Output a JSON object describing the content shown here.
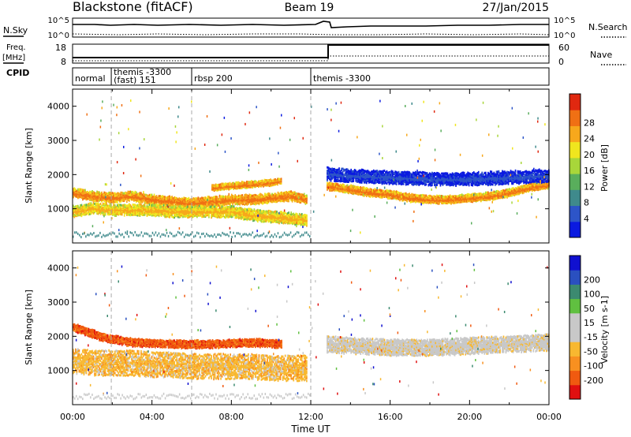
{
  "header": {
    "station": "Blackstone (fitACF)",
    "beam": "Beam 19",
    "date": "27/Jan/2015"
  },
  "left_labels": {
    "nsky": "N.Sky",
    "freq_l1": "Freq.",
    "freq_l2": "[MHz]",
    "cpid": "CPID"
  },
  "right_labels": {
    "nsearch": "N.Search",
    "nave": "Nave"
  },
  "nsky_axis": {
    "top": "10^5",
    "bottom": "10^0"
  },
  "freq_axis": {
    "top": "18",
    "bottom": "8"
  },
  "nave_axis": {
    "top": "60",
    "bottom": "0"
  },
  "cpid_segments": [
    {
      "start_h": 0.0,
      "line1": "normal",
      "line2": ""
    },
    {
      "start_h": 1.95,
      "line1": "themis -3300",
      "line2": "(fast) 151"
    },
    {
      "start_h": 6.0,
      "line1": "rbsp 200",
      "line2": ""
    },
    {
      "start_h": 12.0,
      "line1": "themis -3300",
      "line2": ""
    }
  ],
  "chart_data": [
    {
      "type": "heatmap",
      "panel": "power",
      "ylabel": "Slant Range [km]",
      "yticks": [
        "1000",
        "2000",
        "3000",
        "4000"
      ],
      "ylim": [
        0,
        4500
      ],
      "xlim_hours": [
        0,
        24
      ],
      "colorbar_label": "Power [dB]",
      "colorbar_ticks": [
        "4",
        "8",
        "12",
        "16",
        "20",
        "24",
        "28"
      ],
      "colors": [
        "#0a1ae0",
        "#2d55c8",
        "#3f8a8c",
        "#59ae5c",
        "#a8d63a",
        "#f0e61e",
        "#f7a81c",
        "#f07014",
        "#e02810"
      ],
      "bands": [
        {
          "x": [
            0.0,
            1.0,
            2.0,
            3.0,
            4.0,
            5.0,
            6.0,
            7.0,
            8.0,
            9.0,
            10.0,
            11.0,
            11.8
          ],
          "center_km": [
            1500,
            1400,
            1350,
            1400,
            1300,
            1250,
            1200,
            1250,
            1300,
            1300,
            1350,
            1400,
            1300
          ],
          "width_km": 250,
          "level": 7
        },
        {
          "x": [
            0.0,
            1.0,
            2.0,
            3.0,
            4.0,
            5.0,
            6.0,
            7.0,
            8.0,
            9.0,
            10.0,
            11.0,
            11.8
          ],
          "center_km": [
            950,
            1050,
            1000,
            1000,
            1000,
            950,
            950,
            950,
            950,
            850,
            800,
            750,
            700
          ],
          "width_km": 300,
          "level": 6
        },
        {
          "x": [
            7.0,
            8.0,
            9.0,
            10.0,
            10.5
          ],
          "center_km": [
            1650,
            1700,
            1750,
            1800,
            1850
          ],
          "width_km": 150,
          "level": 7
        },
        {
          "x": [
            12.8,
            14.0,
            15.0,
            16.0,
            17.0,
            18.0,
            19.0,
            20.0,
            21.0,
            22.0,
            23.0,
            24.0
          ],
          "center_km": [
            1700,
            1600,
            1500,
            1450,
            1350,
            1300,
            1300,
            1350,
            1400,
            1500,
            1650,
            1750
          ],
          "width_km": 200,
          "level": 7
        },
        {
          "x": [
            12.8,
            14.0,
            16.0,
            18.0,
            20.0,
            22.0,
            24.0
          ],
          "center_km": [
            2050,
            2000,
            1950,
            1900,
            1900,
            1950,
            2000
          ],
          "width_km": 350,
          "level": 1
        }
      ]
    },
    {
      "type": "heatmap",
      "panel": "velocity",
      "xlabel": "Time UT",
      "ylabel": "Slant Range [km]",
      "yticks": [
        "1000",
        "2000",
        "3000",
        "4000"
      ],
      "ylim": [
        0,
        4500
      ],
      "xticks": [
        "00:00",
        "04:00",
        "08:00",
        "12:00",
        "16:00",
        "20:00",
        "00:00"
      ],
      "xlim_hours": [
        0,
        24
      ],
      "colorbar_label": "Velocity [m s-1]",
      "colorbar_ticks": [
        "-200",
        "-100",
        "-50",
        "-15",
        "15",
        "50",
        "100",
        "200"
      ],
      "colors": [
        "#e01010",
        "#f05a10",
        "#f89020",
        "#f8b830",
        "#c8c8c8",
        "#c8c8c8",
        "#60c040",
        "#3c8a70",
        "#2a50c0",
        "#1010d0"
      ],
      "bands": [
        {
          "x": [
            0.0,
            1.0,
            2.0,
            3.0,
            4.0,
            5.0,
            6.0,
            7.0,
            8.0,
            9.0,
            10.0,
            11.0,
            11.8
          ],
          "center_km": [
            1300,
            1250,
            1250,
            1250,
            1200,
            1200,
            1150,
            1150,
            1150,
            1150,
            1100,
            1100,
            1100
          ],
          "width_km": 700,
          "level": 3
        },
        {
          "x": [
            0.0,
            1.5,
            3.0,
            5.0,
            7.0,
            9.0,
            10.5
          ],
          "center_km": [
            2300,
            2000,
            1850,
            1800,
            1800,
            1850,
            1800
          ],
          "width_km": 200,
          "level": 1
        },
        {
          "x": [
            12.8,
            14.0,
            16.0,
            18.0,
            20.0,
            22.0,
            24.0
          ],
          "center_km": [
            1800,
            1750,
            1700,
            1700,
            1750,
            1800,
            1850
          ],
          "width_km": 450,
          "level": 4
        }
      ]
    }
  ]
}
